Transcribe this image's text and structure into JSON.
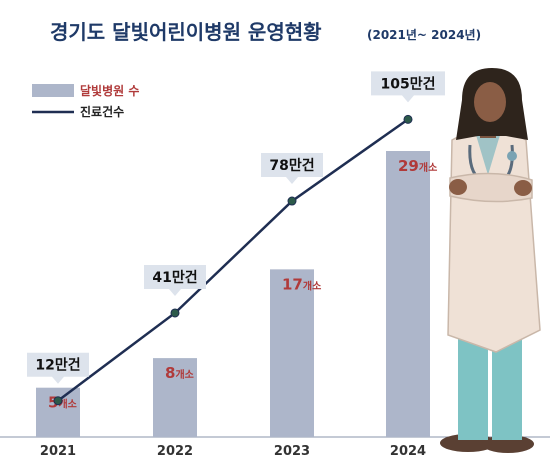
{
  "chart_data": {
    "type": "bar",
    "title": "경기도 달빛어린이병원 운영현황",
    "subtitle": "(2021년~ 2024년)",
    "categories": [
      "2021",
      "2022",
      "2023",
      "2024"
    ],
    "series": [
      {
        "name": "달빛병원 수",
        "kind": "bar",
        "values": [
          5,
          8,
          17,
          29
        ],
        "labels": [
          "5",
          "8",
          "17",
          "29"
        ],
        "unit": "개소",
        "color": "#adb6ca"
      },
      {
        "name": "진료건수",
        "kind": "line",
        "values": [
          12,
          41,
          78,
          105
        ],
        "labels": [
          "12만건",
          "41만건",
          "78만건",
          "105만건"
        ],
        "color": "#1f2e52"
      }
    ],
    "legend": "top-left",
    "grid": false
  },
  "colors": {
    "title": "#1f3a68",
    "bar_value": "#b03a3a",
    "callout_bg": "#dde3ec",
    "axis": "#8a94ab"
  }
}
